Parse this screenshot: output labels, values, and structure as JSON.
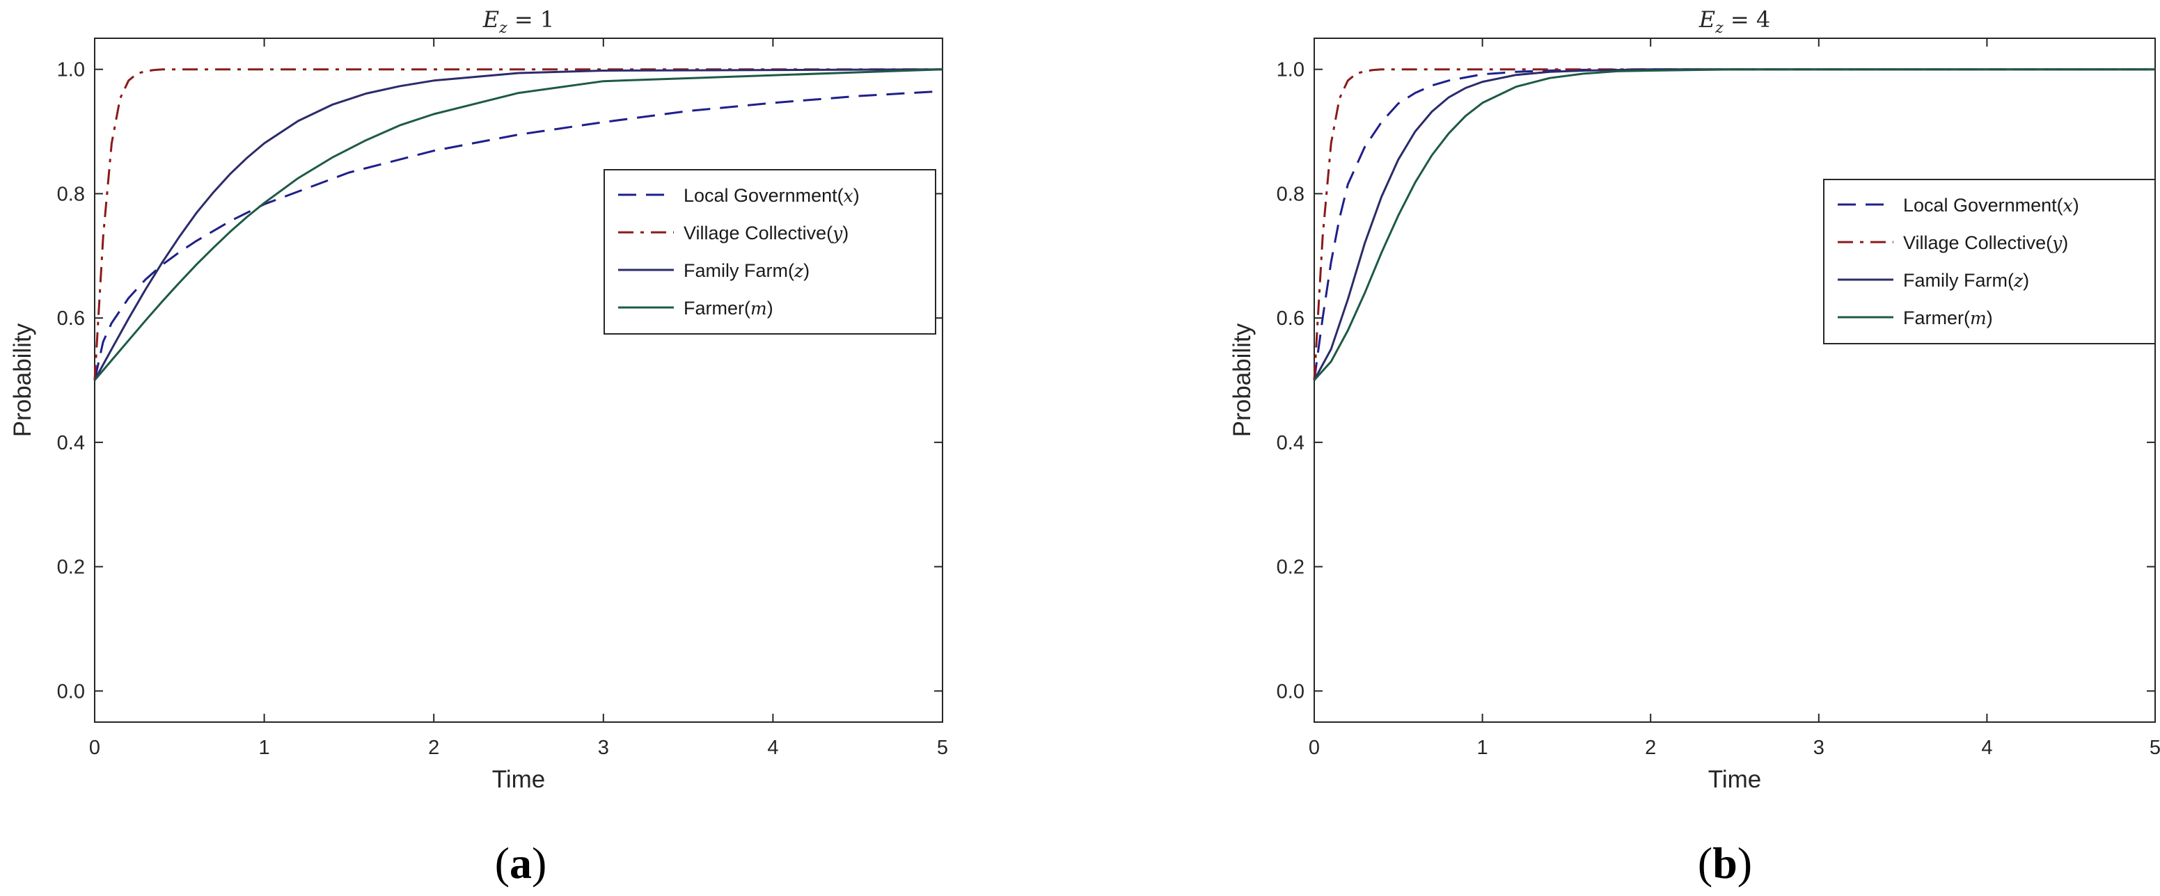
{
  "chart_data": [
    {
      "type": "line",
      "title": "E_z = 1",
      "title_parts": {
        "main": "E",
        "sub": "z",
        "rest": " = 1"
      },
      "panel_label": {
        "open": "(",
        "letter": "a",
        "close": ")"
      },
      "xlabel": "Time",
      "ylabel": "Probability",
      "xlim": [
        0,
        5
      ],
      "ylim": [
        -0.05,
        1.05
      ],
      "xticks": [
        0,
        1,
        2,
        3,
        4,
        5
      ],
      "yticks": [
        0.0,
        0.2,
        0.4,
        0.6,
        0.8,
        1.0
      ],
      "ytick_labels": [
        "0.0",
        "0.2",
        "0.4",
        "0.6",
        "0.8",
        "1.0"
      ],
      "grid": false,
      "legend_position": "upper-right",
      "series": [
        {
          "name": "Local Government(x)",
          "label": "Local Government(",
          "var": "x",
          "color": "#1f1f8c",
          "dash": "dashed",
          "x": [
            0,
            0.05,
            0.1,
            0.2,
            0.3,
            0.4,
            0.5,
            0.6,
            0.8,
            1.0,
            1.5,
            2.0,
            2.5,
            3.0,
            3.5,
            4.0,
            4.5,
            5.0
          ],
          "y": [
            0.5,
            0.562,
            0.592,
            0.632,
            0.662,
            0.686,
            0.706,
            0.724,
            0.756,
            0.783,
            0.834,
            0.869,
            0.895,
            0.915,
            0.933,
            0.946,
            0.957,
            0.965
          ]
        },
        {
          "name": "Village Collective(y)",
          "label": "Village Collective(",
          "var": "y",
          "color": "#8b1a1a",
          "dash": "dashdot",
          "x": [
            0,
            0.05,
            0.1,
            0.15,
            0.2,
            0.25,
            0.3,
            0.35,
            0.4,
            0.5,
            0.6,
            0.8,
            1.0,
            1.5,
            2.0,
            5.0
          ],
          "y": [
            0.5,
            0.731,
            0.881,
            0.953,
            0.982,
            0.993,
            0.997,
            0.999,
            1.0,
            1.0,
            1.0,
            1.0,
            1.0,
            1.0,
            1.0,
            1.0
          ]
        },
        {
          "name": "Family Farm(z)",
          "label": "Family Farm(",
          "var": "z",
          "color": "#2b2b6b",
          "dash": "solid",
          "x": [
            0,
            0.1,
            0.2,
            0.3,
            0.4,
            0.5,
            0.6,
            0.7,
            0.8,
            0.9,
            1.0,
            1.2,
            1.4,
            1.6,
            1.8,
            2.0,
            2.5,
            3.0,
            5.0
          ],
          "y": [
            0.5,
            0.55,
            0.599,
            0.646,
            0.69,
            0.731,
            0.769,
            0.802,
            0.832,
            0.858,
            0.881,
            0.917,
            0.943,
            0.961,
            0.973,
            0.982,
            0.994,
            0.998,
            1.0
          ]
        },
        {
          "name": "Farmer(m)",
          "label": "Farmer(",
          "var": "m",
          "color": "#1e5a46",
          "dash": "solid",
          "x": [
            0,
            0.1,
            0.2,
            0.3,
            0.4,
            0.5,
            0.6,
            0.7,
            0.8,
            0.9,
            1.0,
            1.2,
            1.4,
            1.6,
            1.8,
            2.0,
            2.5,
            3.0,
            5.0
          ],
          "y": [
            0.5,
            0.532,
            0.564,
            0.596,
            0.627,
            0.657,
            0.686,
            0.713,
            0.739,
            0.763,
            0.785,
            0.825,
            0.858,
            0.886,
            0.91,
            0.928,
            0.962,
            0.981,
            1.0
          ]
        }
      ]
    },
    {
      "type": "line",
      "title": "E_z = 4",
      "title_parts": {
        "main": "E",
        "sub": "z",
        "rest": " = 4"
      },
      "panel_label": {
        "open": "(",
        "letter": "b",
        "close": ")"
      },
      "xlabel": "Time",
      "ylabel": "Probability",
      "xlim": [
        0,
        5
      ],
      "ylim": [
        -0.05,
        1.05
      ],
      "xticks": [
        0,
        1,
        2,
        3,
        4,
        5
      ],
      "yticks": [
        0.0,
        0.2,
        0.4,
        0.6,
        0.8,
        1.0
      ],
      "ytick_labels": [
        "0.0",
        "0.2",
        "0.4",
        "0.6",
        "0.8",
        "1.0"
      ],
      "grid": false,
      "legend_position": "upper-right",
      "series": [
        {
          "name": "Local Government(x)",
          "label": "Local Government(",
          "var": "x",
          "color": "#1f1f8c",
          "dash": "dashed",
          "x": [
            0,
            0.05,
            0.1,
            0.15,
            0.2,
            0.3,
            0.4,
            0.5,
            0.6,
            0.7,
            0.8,
            1.0,
            1.2,
            1.5,
            2.0,
            5.0
          ],
          "y": [
            0.5,
            0.6,
            0.69,
            0.76,
            0.815,
            0.875,
            0.915,
            0.945,
            0.962,
            0.974,
            0.982,
            0.992,
            0.996,
            0.999,
            1.0,
            1.0
          ]
        },
        {
          "name": "Village Collective(y)",
          "label": "Village Collective(",
          "var": "y",
          "color": "#8b1a1a",
          "dash": "dashdot",
          "x": [
            0,
            0.05,
            0.1,
            0.15,
            0.2,
            0.25,
            0.3,
            0.35,
            0.4,
            0.5,
            0.6,
            0.8,
            1.0,
            1.5,
            5.0
          ],
          "y": [
            0.5,
            0.731,
            0.881,
            0.953,
            0.982,
            0.993,
            0.997,
            0.999,
            1.0,
            1.0,
            1.0,
            1.0,
            1.0,
            1.0,
            1.0
          ]
        },
        {
          "name": "Family Farm(z)",
          "label": "Family Farm(",
          "var": "z",
          "color": "#2b2b6b",
          "dash": "solid",
          "x": [
            0,
            0.1,
            0.2,
            0.3,
            0.4,
            0.5,
            0.6,
            0.7,
            0.8,
            0.9,
            1.0,
            1.2,
            1.4,
            1.6,
            2.0,
            5.0
          ],
          "y": [
            0.5,
            0.55,
            0.63,
            0.72,
            0.795,
            0.855,
            0.9,
            0.932,
            0.955,
            0.97,
            0.98,
            0.991,
            0.996,
            0.998,
            1.0,
            1.0
          ]
        },
        {
          "name": "Farmer(m)",
          "label": "Farmer(",
          "var": "m",
          "color": "#1e5a46",
          "dash": "solid",
          "x": [
            0,
            0.1,
            0.2,
            0.3,
            0.4,
            0.5,
            0.6,
            0.7,
            0.8,
            0.9,
            1.0,
            1.2,
            1.4,
            1.6,
            1.8,
            2.0,
            2.5,
            5.0
          ],
          "y": [
            0.5,
            0.53,
            0.58,
            0.64,
            0.705,
            0.765,
            0.818,
            0.862,
            0.897,
            0.925,
            0.946,
            0.972,
            0.986,
            0.993,
            0.997,
            0.998,
            1.0,
            1.0
          ]
        }
      ]
    }
  ]
}
